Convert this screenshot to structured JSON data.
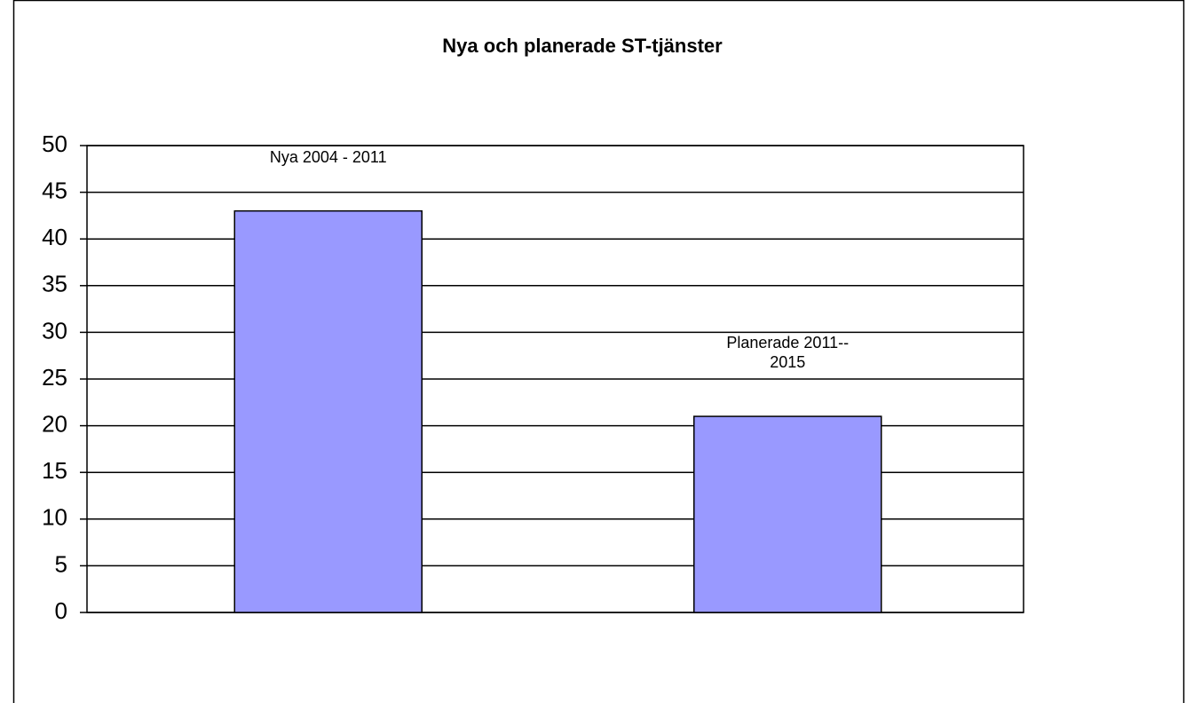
{
  "chart_data": {
    "type": "bar",
    "title": "Nya och planerade ST-tjänster",
    "categories": [
      "Nya 2004 - 2011",
      "Planerade  2011--\n2015"
    ],
    "values": [
      43,
      21
    ],
    "color": "#9999ff",
    "ylim": [
      0,
      50
    ],
    "yticks": [
      0,
      5,
      10,
      15,
      20,
      25,
      30,
      35,
      40,
      45,
      50
    ],
    "grid": true
  }
}
